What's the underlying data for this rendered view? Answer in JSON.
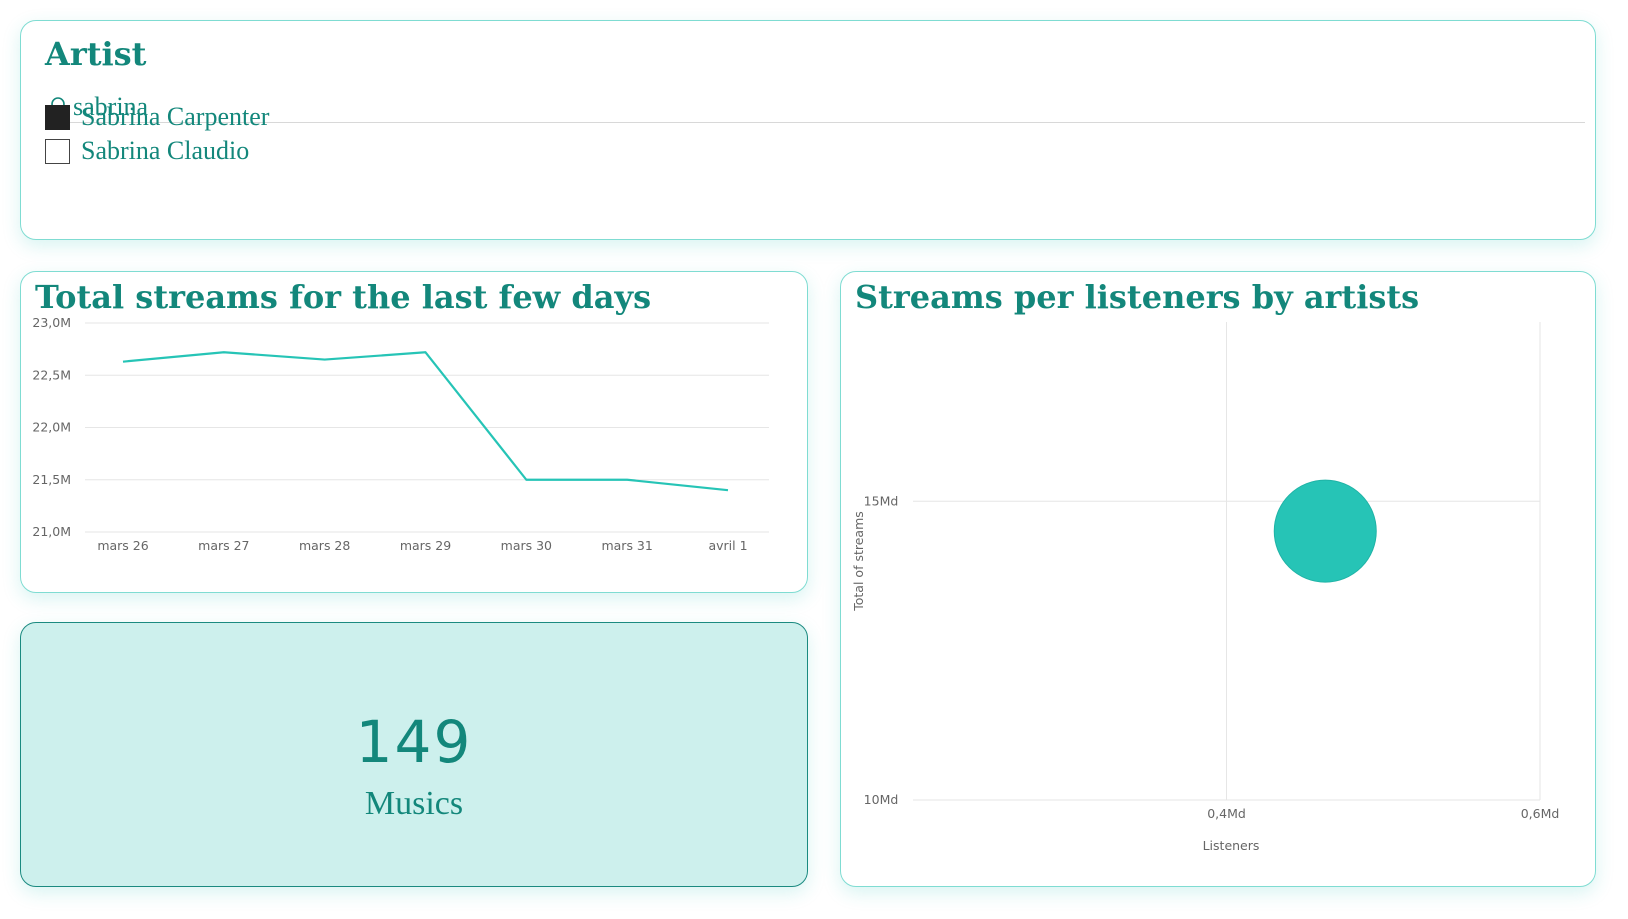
{
  "slicer": {
    "title": "Artist",
    "search_value": "sabrina",
    "options": [
      {
        "label": "Sabrina Carpenter",
        "checked": true
      },
      {
        "label": "Sabrina Claudio",
        "checked": false
      }
    ]
  },
  "line_chart": {
    "title": "Total streams for the last few days"
  },
  "bubble_chart": {
    "title": "Streams per listeners by artists"
  },
  "kpi": {
    "value": "149",
    "label": "Musics"
  },
  "colors": {
    "accent": "#13877b",
    "series": "#26c4b6",
    "card_border": "#7fdcd2",
    "kpi_bg": "#cdf0ed"
  },
  "icons": {
    "search": "search-icon"
  },
  "chart_data": [
    {
      "type": "line",
      "title": "Total streams for the last few days",
      "categories": [
        "mars 26",
        "mars 27",
        "mars 28",
        "mars 29",
        "mars 30",
        "mars 31",
        "avril 1"
      ],
      "series": [
        {
          "values": [
            22.63,
            22.72,
            22.65,
            22.72,
            21.5,
            21.5,
            21.4
          ]
        }
      ],
      "y_ticks": [
        "21,0M",
        "21,5M",
        "22,0M",
        "22,5M",
        "23,0M"
      ],
      "ylim": [
        21.0,
        23.0
      ],
      "unit": "M",
      "grid": true
    },
    {
      "type": "scatter",
      "title": "Streams per listeners by artists",
      "xlabel": "Listeners",
      "ylabel": "Total of streams",
      "x_ticks": [
        "0,4Md",
        "0,6Md"
      ],
      "y_ticks": [
        "10Md",
        "15Md"
      ],
      "xlim": [
        0.2,
        0.6
      ],
      "ylim": [
        10,
        18
      ],
      "points": [
        {
          "x": 0.463,
          "y": 14.5
        }
      ],
      "grid": true
    }
  ]
}
